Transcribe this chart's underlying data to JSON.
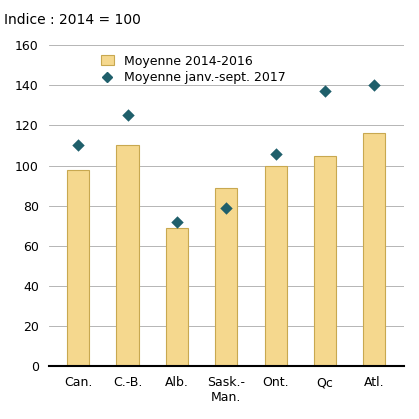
{
  "categories": [
    "Can.",
    "C.-B.",
    "Alb.",
    "Sask.-\nMan.",
    "Ont.",
    "Qc",
    "Atl."
  ],
  "bar_values": [
    98,
    110,
    69,
    89,
    100,
    105,
    116
  ],
  "diamond_values": [
    110,
    125,
    72,
    79,
    106,
    137,
    140
  ],
  "bar_color": "#F5D88E",
  "bar_edgecolor": "#C8A850",
  "diamond_color": "#1F5F6B",
  "ylim": [
    0,
    160
  ],
  "yticks": [
    0,
    20,
    40,
    60,
    80,
    100,
    120,
    140,
    160
  ],
  "ylabel": "",
  "xlabel": "",
  "title": "Indice : 2014 = 100",
  "legend_bar_label": "Moyenne 2014-2016",
  "legend_diamond_label": "Moyenne janv.-sept. 2017",
  "title_fontsize": 10,
  "tick_fontsize": 9,
  "legend_fontsize": 9,
  "background_color": "#ffffff",
  "grid_color": "#aaaaaa"
}
